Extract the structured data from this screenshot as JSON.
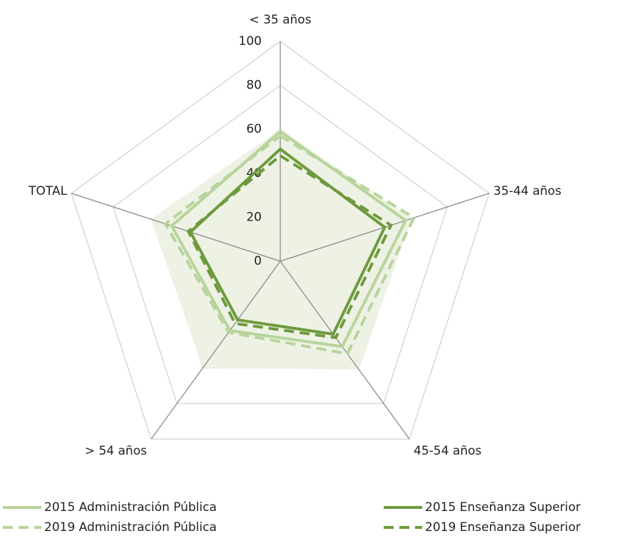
{
  "chart_data": {
    "type": "radar",
    "categories": [
      "< 35 años",
      "35-44 años",
      "45-54 años",
      "> 54 años",
      "TOTAL"
    ],
    "ylim": [
      0,
      100
    ],
    "yticks": [
      0,
      20,
      40,
      60,
      80,
      100
    ],
    "grid": true,
    "area": {
      "color": "#eef2e5",
      "values": [
        60,
        63,
        61,
        60,
        62
      ]
    },
    "series": [
      {
        "name": "2015 Administración Pública",
        "color": "#b7d49b",
        "dash": false,
        "values": [
          59,
          60,
          48,
          39,
          52
        ]
      },
      {
        "name": "2015 Enseñanza Superior",
        "color": "#6e9a3c",
        "dash": false,
        "values": [
          51,
          50,
          41,
          33,
          43
        ]
      },
      {
        "name": "2019 Administración Pública",
        "color": "#b7d49b",
        "dash": true,
        "values": [
          57,
          64,
          52,
          40,
          55
        ]
      },
      {
        "name": "2019 Enseñanza Superior",
        "color": "#6e9a3c",
        "dash": true,
        "values": [
          48,
          53,
          43,
          35,
          44
        ]
      }
    ]
  }
}
